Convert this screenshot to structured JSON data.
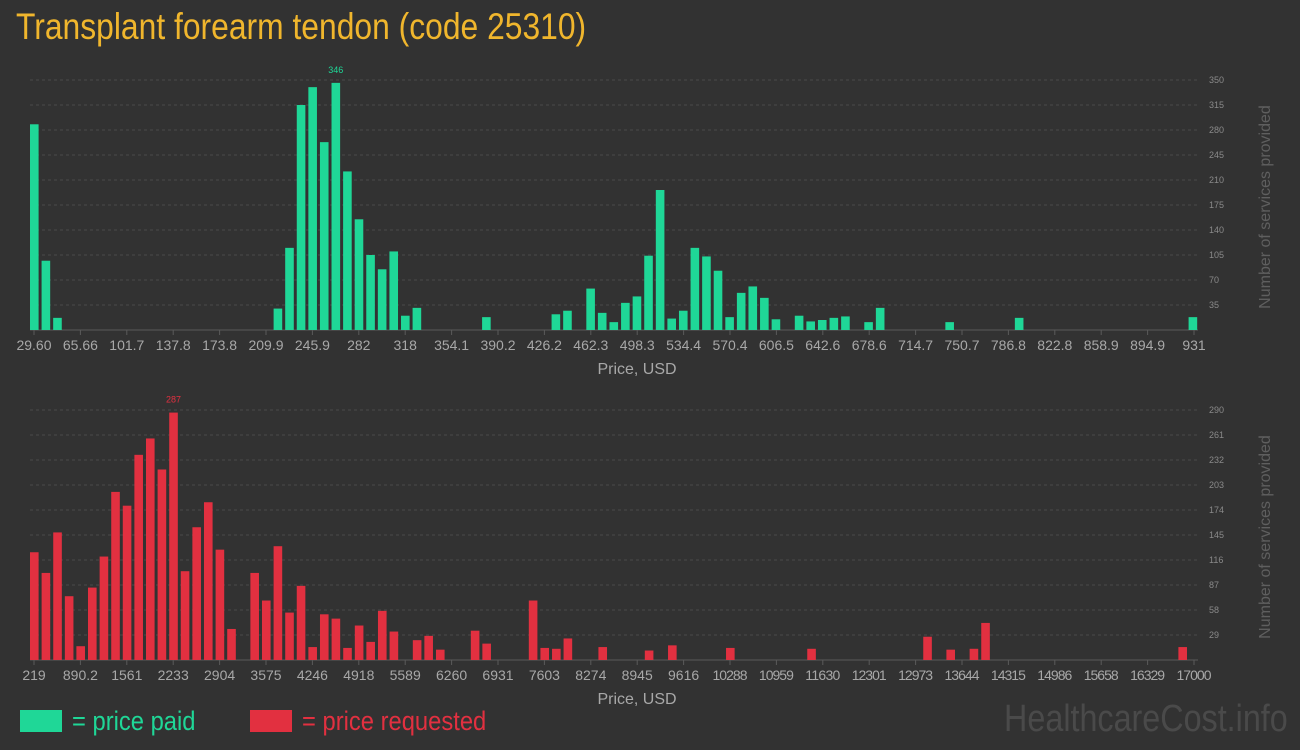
{
  "title": "Transplant forearm tendon (code 25310)",
  "watermark": "HealthcareCost.info",
  "legend": [
    {
      "label": "= price paid",
      "color": "#1fd797"
    },
    {
      "label": "= price requested",
      "color": "#e23040"
    }
  ],
  "chart_data": [
    {
      "type": "bar",
      "series_name": "price paid",
      "color": "#1fd797",
      "xlabel": "Price, USD",
      "ylabel": "Number of services provided",
      "ylim": [
        0,
        350
      ],
      "ytick_labels": [
        "35",
        "70",
        "105",
        "140",
        "175",
        "210",
        "245",
        "280",
        "315",
        "350"
      ],
      "xtick_labels": [
        "29.60",
        "65.66",
        "101.7",
        "137.8",
        "173.8",
        "209.9",
        "245.9",
        "282",
        "318",
        "354.1",
        "390.2",
        "426.2",
        "462.3",
        "498.3",
        "534.4",
        "570.4",
        "606.5",
        "642.6",
        "678.6",
        "714.7",
        "750.7",
        "786.8",
        "822.8",
        "858.9",
        "894.9",
        "931"
      ],
      "x_range": [
        29.6,
        931
      ],
      "peak_label": "346",
      "grid": true,
      "bars": [
        {
          "x": 29.6,
          "value": 288
        },
        {
          "x": 38.6,
          "value": 97
        },
        {
          "x": 47.6,
          "value": 17
        },
        {
          "x": 218.9,
          "value": 30
        },
        {
          "x": 227.9,
          "value": 115
        },
        {
          "x": 236.9,
          "value": 315
        },
        {
          "x": 245.9,
          "value": 340
        },
        {
          "x": 254.9,
          "value": 263
        },
        {
          "x": 263.9,
          "value": 346
        },
        {
          "x": 272.9,
          "value": 222
        },
        {
          "x": 281.9,
          "value": 155
        },
        {
          "x": 290.9,
          "value": 105
        },
        {
          "x": 299.9,
          "value": 85
        },
        {
          "x": 308.9,
          "value": 110
        },
        {
          "x": 317.9,
          "value": 20
        },
        {
          "x": 326.9,
          "value": 31
        },
        {
          "x": 380.9,
          "value": 18
        },
        {
          "x": 434.9,
          "value": 22
        },
        {
          "x": 443.9,
          "value": 27
        },
        {
          "x": 461.9,
          "value": 58
        },
        {
          "x": 470.9,
          "value": 24
        },
        {
          "x": 479.9,
          "value": 11
        },
        {
          "x": 488.9,
          "value": 38
        },
        {
          "x": 497.9,
          "value": 47
        },
        {
          "x": 506.9,
          "value": 104
        },
        {
          "x": 515.9,
          "value": 196
        },
        {
          "x": 524.9,
          "value": 16
        },
        {
          "x": 533.9,
          "value": 27
        },
        {
          "x": 542.9,
          "value": 115
        },
        {
          "x": 551.9,
          "value": 103
        },
        {
          "x": 560.9,
          "value": 83
        },
        {
          "x": 569.9,
          "value": 18
        },
        {
          "x": 578.9,
          "value": 52
        },
        {
          "x": 587.9,
          "value": 61
        },
        {
          "x": 596.9,
          "value": 45
        },
        {
          "x": 605.9,
          "value": 15
        },
        {
          "x": 623.9,
          "value": 20
        },
        {
          "x": 632.9,
          "value": 12
        },
        {
          "x": 641.9,
          "value": 14
        },
        {
          "x": 650.9,
          "value": 17
        },
        {
          "x": 659.9,
          "value": 19
        },
        {
          "x": 677.9,
          "value": 11
        },
        {
          "x": 686.9,
          "value": 31
        },
        {
          "x": 740.9,
          "value": 11
        },
        {
          "x": 794.9,
          "value": 17
        },
        {
          "x": 929.9,
          "value": 18
        }
      ]
    },
    {
      "type": "bar",
      "series_name": "price requested",
      "color": "#e23040",
      "xlabel": "Price, USD",
      "ylabel": "Number of services provided",
      "ylim": [
        0,
        290
      ],
      "ytick_labels": [
        "29",
        "58",
        "87",
        "116",
        "145",
        "174",
        "203",
        "232",
        "261",
        "290"
      ],
      "xtick_labels": [
        "219",
        "890.2",
        "1561",
        "2233",
        "2904",
        "3575",
        "4246",
        "4918",
        "5589",
        "6260",
        "6931",
        "7603",
        "8274",
        "8945",
        "9616",
        "10288",
        "10959",
        "11630",
        "12301",
        "12973",
        "13644",
        "14315",
        "14986",
        "15658",
        "16329",
        "17000"
      ],
      "x_range": [
        219,
        17000
      ],
      "peak_label": "287",
      "grid": true,
      "bars": [
        {
          "x": 219,
          "value": 125
        },
        {
          "x": 387,
          "value": 101
        },
        {
          "x": 555,
          "value": 148
        },
        {
          "x": 723,
          "value": 74
        },
        {
          "x": 890,
          "value": 16
        },
        {
          "x": 1058,
          "value": 84
        },
        {
          "x": 1226,
          "value": 120
        },
        {
          "x": 1394,
          "value": 195
        },
        {
          "x": 1561,
          "value": 179
        },
        {
          "x": 1729,
          "value": 238
        },
        {
          "x": 1897,
          "value": 257
        },
        {
          "x": 2065,
          "value": 221
        },
        {
          "x": 2233,
          "value": 287
        },
        {
          "x": 2400,
          "value": 103
        },
        {
          "x": 2568,
          "value": 154
        },
        {
          "x": 2736,
          "value": 183
        },
        {
          "x": 2904,
          "value": 128
        },
        {
          "x": 3072,
          "value": 36
        },
        {
          "x": 3407,
          "value": 101
        },
        {
          "x": 3575,
          "value": 69
        },
        {
          "x": 3743,
          "value": 132
        },
        {
          "x": 3911,
          "value": 55
        },
        {
          "x": 4078,
          "value": 86
        },
        {
          "x": 4246,
          "value": 15
        },
        {
          "x": 4414,
          "value": 53
        },
        {
          "x": 4582,
          "value": 48
        },
        {
          "x": 4750,
          "value": 14
        },
        {
          "x": 4918,
          "value": 40
        },
        {
          "x": 5085,
          "value": 21
        },
        {
          "x": 5253,
          "value": 57
        },
        {
          "x": 5421,
          "value": 33
        },
        {
          "x": 5757,
          "value": 23
        },
        {
          "x": 5924,
          "value": 28
        },
        {
          "x": 6092,
          "value": 12
        },
        {
          "x": 6596,
          "value": 34
        },
        {
          "x": 6763,
          "value": 19
        },
        {
          "x": 7435,
          "value": 69
        },
        {
          "x": 7603,
          "value": 14
        },
        {
          "x": 7771,
          "value": 13
        },
        {
          "x": 7938,
          "value": 25
        },
        {
          "x": 8442,
          "value": 15
        },
        {
          "x": 9113,
          "value": 11
        },
        {
          "x": 9449,
          "value": 17
        },
        {
          "x": 10288,
          "value": 14
        },
        {
          "x": 11463,
          "value": 13
        },
        {
          "x": 13141,
          "value": 27
        },
        {
          "x": 13476,
          "value": 12
        },
        {
          "x": 13812,
          "value": 13
        },
        {
          "x": 13980,
          "value": 43
        },
        {
          "x": 16832,
          "value": 15
        }
      ]
    }
  ]
}
